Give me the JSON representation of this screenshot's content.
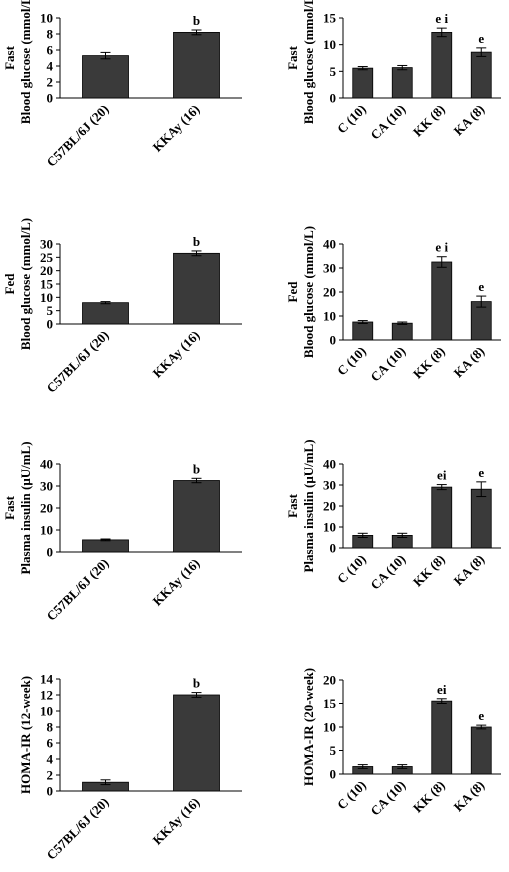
{
  "chart_data": [
    {
      "type": "bar",
      "ylabel_top": "Fast",
      "ylabel": "Blood glucose (mmol/L)",
      "categories": [
        "C57BL/6J (20)",
        "KKAy (16)"
      ],
      "values": [
        5.3,
        8.2
      ],
      "errors": [
        0.4,
        0.3
      ],
      "sig": [
        "",
        "b"
      ],
      "ylim": [
        0,
        10
      ],
      "yticks": [
        0,
        2,
        4,
        6,
        8,
        10
      ],
      "bar_color": "#3a3a3a"
    },
    {
      "type": "bar",
      "ylabel_top": "Fast",
      "ylabel": "Blood glucose (mmol/L)",
      "categories": [
        "C (10)",
        "CA (10)",
        "KK (8)",
        "KA (8)"
      ],
      "values": [
        5.6,
        5.7,
        12.3,
        8.6
      ],
      "errors": [
        0.3,
        0.4,
        0.8,
        0.8
      ],
      "sig": [
        "",
        "",
        "e i",
        "e"
      ],
      "ylim": [
        0,
        15
      ],
      "yticks": [
        0,
        5,
        10,
        15
      ],
      "bar_color": "#3a3a3a"
    },
    {
      "type": "bar",
      "ylabel_top": "Fed",
      "ylabel": "Blood glucose (mmol/L)",
      "categories": [
        "C57BL/6J (20)",
        "KKAy (16)"
      ],
      "values": [
        8.0,
        26.5
      ],
      "errors": [
        0.4,
        0.9
      ],
      "sig": [
        "",
        "b"
      ],
      "ylim": [
        0,
        30
      ],
      "yticks": [
        0,
        5,
        10,
        15,
        20,
        25,
        30
      ],
      "bar_color": "#3a3a3a"
    },
    {
      "type": "bar",
      "ylabel_top": "Fed",
      "ylabel": "Blood glucose (mmol/L)",
      "categories": [
        "C (10)",
        "CA (10)",
        "KK (8)",
        "KA (8)"
      ],
      "values": [
        7.5,
        7.0,
        32.5,
        16.0
      ],
      "errors": [
        0.6,
        0.5,
        2.2,
        2.3
      ],
      "sig": [
        "",
        "",
        "e i",
        "e"
      ],
      "ylim": [
        0,
        40
      ],
      "yticks": [
        0,
        10,
        20,
        30,
        40
      ],
      "bar_color": "#3a3a3a"
    },
    {
      "type": "bar",
      "ylabel_top": "Fast",
      "ylabel": "Plasma insulin (μU/mL)",
      "categories": [
        "C57BL/6J (20)",
        "KKAy (16)"
      ],
      "values": [
        5.5,
        32.5
      ],
      "errors": [
        0.4,
        1.0
      ],
      "sig": [
        "",
        "b"
      ],
      "ylim": [
        0,
        40
      ],
      "yticks": [
        0,
        10,
        20,
        30,
        40
      ],
      "bar_color": "#3a3a3a"
    },
    {
      "type": "bar",
      "ylabel_top": "Fast",
      "ylabel": "Plasma insulin (μU/mL)",
      "categories": [
        "C (10)",
        "CA (10)",
        "KK (8)",
        "KA (8)"
      ],
      "values": [
        6.0,
        6.0,
        29.0,
        28.0
      ],
      "errors": [
        1.0,
        1.0,
        1.2,
        3.5
      ],
      "sig": [
        "",
        "",
        "ei",
        "e"
      ],
      "ylim": [
        0,
        40
      ],
      "yticks": [
        0,
        10,
        20,
        30,
        40
      ],
      "bar_color": "#3a3a3a"
    },
    {
      "type": "bar",
      "ylabel_top": "",
      "ylabel": "HOMA-IR (12-week)",
      "categories": [
        "C57BL/6J (20)",
        "KKAy (16)"
      ],
      "values": [
        1.1,
        12.0
      ],
      "errors": [
        0.3,
        0.3
      ],
      "sig": [
        "",
        "b"
      ],
      "ylim": [
        0,
        14
      ],
      "yticks": [
        0,
        2,
        4,
        6,
        8,
        10,
        12,
        14
      ],
      "bar_color": "#3a3a3a"
    },
    {
      "type": "bar",
      "ylabel_top": "",
      "ylabel": "HOMA-IR (20-week)",
      "categories": [
        "C (10)",
        "CA (10)",
        "KK (8)",
        "KA (8)"
      ],
      "values": [
        1.6,
        1.6,
        15.5,
        10.0
      ],
      "errors": [
        0.4,
        0.4,
        0.5,
        0.4
      ],
      "sig": [
        "",
        "",
        "ei",
        "e"
      ],
      "ylim": [
        0,
        20
      ],
      "yticks": [
        0,
        5,
        10,
        15,
        20
      ],
      "bar_color": "#3a3a3a"
    }
  ]
}
